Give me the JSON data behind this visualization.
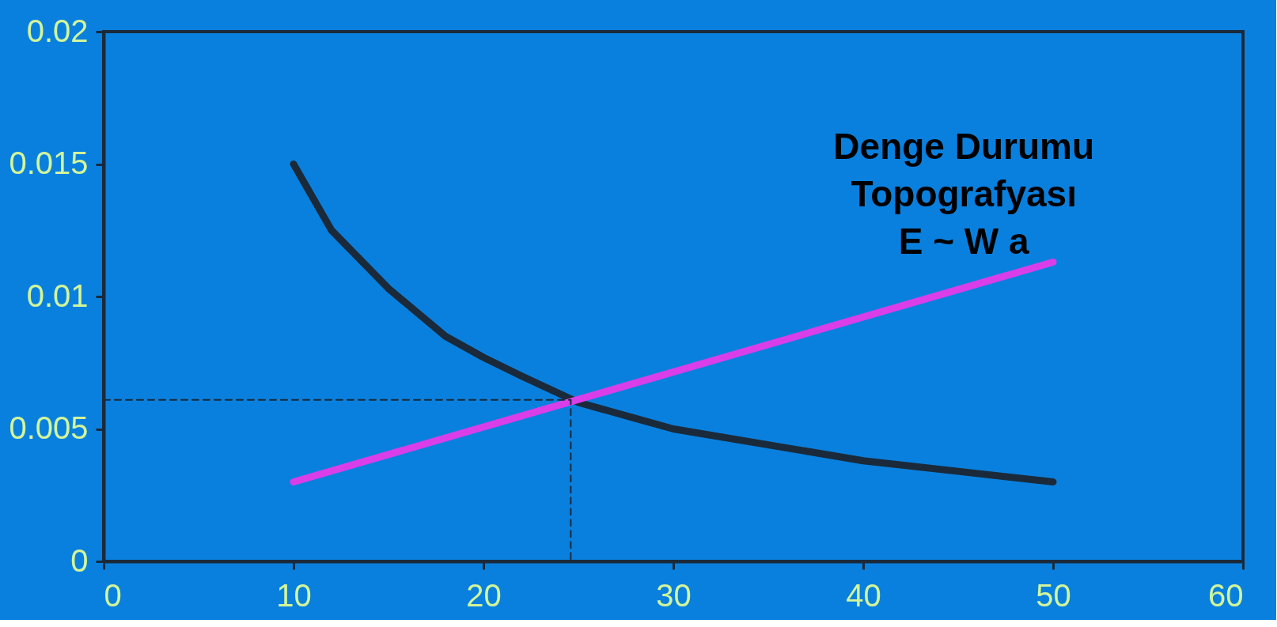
{
  "chart_data": {
    "type": "line",
    "annotations": [
      "Denge Durumu\nTopografyası\nE ~ W a"
    ],
    "series": [
      {
        "color": "#1a2a3a",
        "x": [
          10,
          12,
          15,
          18,
          20,
          22,
          25,
          28,
          30,
          35,
          40,
          45,
          50
        ],
        "values": [
          0.015,
          0.0125,
          0.0103,
          0.0085,
          0.0077,
          0.007,
          0.006,
          0.0054,
          0.005,
          0.0044,
          0.0038,
          0.0034,
          0.003
        ]
      },
      {
        "color": "#d93ee8",
        "x": [
          10,
          50
        ],
        "values": [
          0.003,
          0.0113
        ]
      },
      {
        "color": "#1a2a3a",
        "line_style": "dashed",
        "x": [
          0,
          24.6,
          24.6
        ],
        "values": [
          0.0061,
          0.0061,
          0
        ]
      }
    ],
    "xlim": [
      0,
      60
    ],
    "xticks": [
      0,
      10,
      20,
      30,
      40,
      50,
      60
    ],
    "ylim": [
      0,
      0.02
    ],
    "yticks": [
      0,
      0.005,
      0.01,
      0.015,
      0.02
    ],
    "grid": false,
    "marker": "none",
    "line_style": "solid"
  }
}
